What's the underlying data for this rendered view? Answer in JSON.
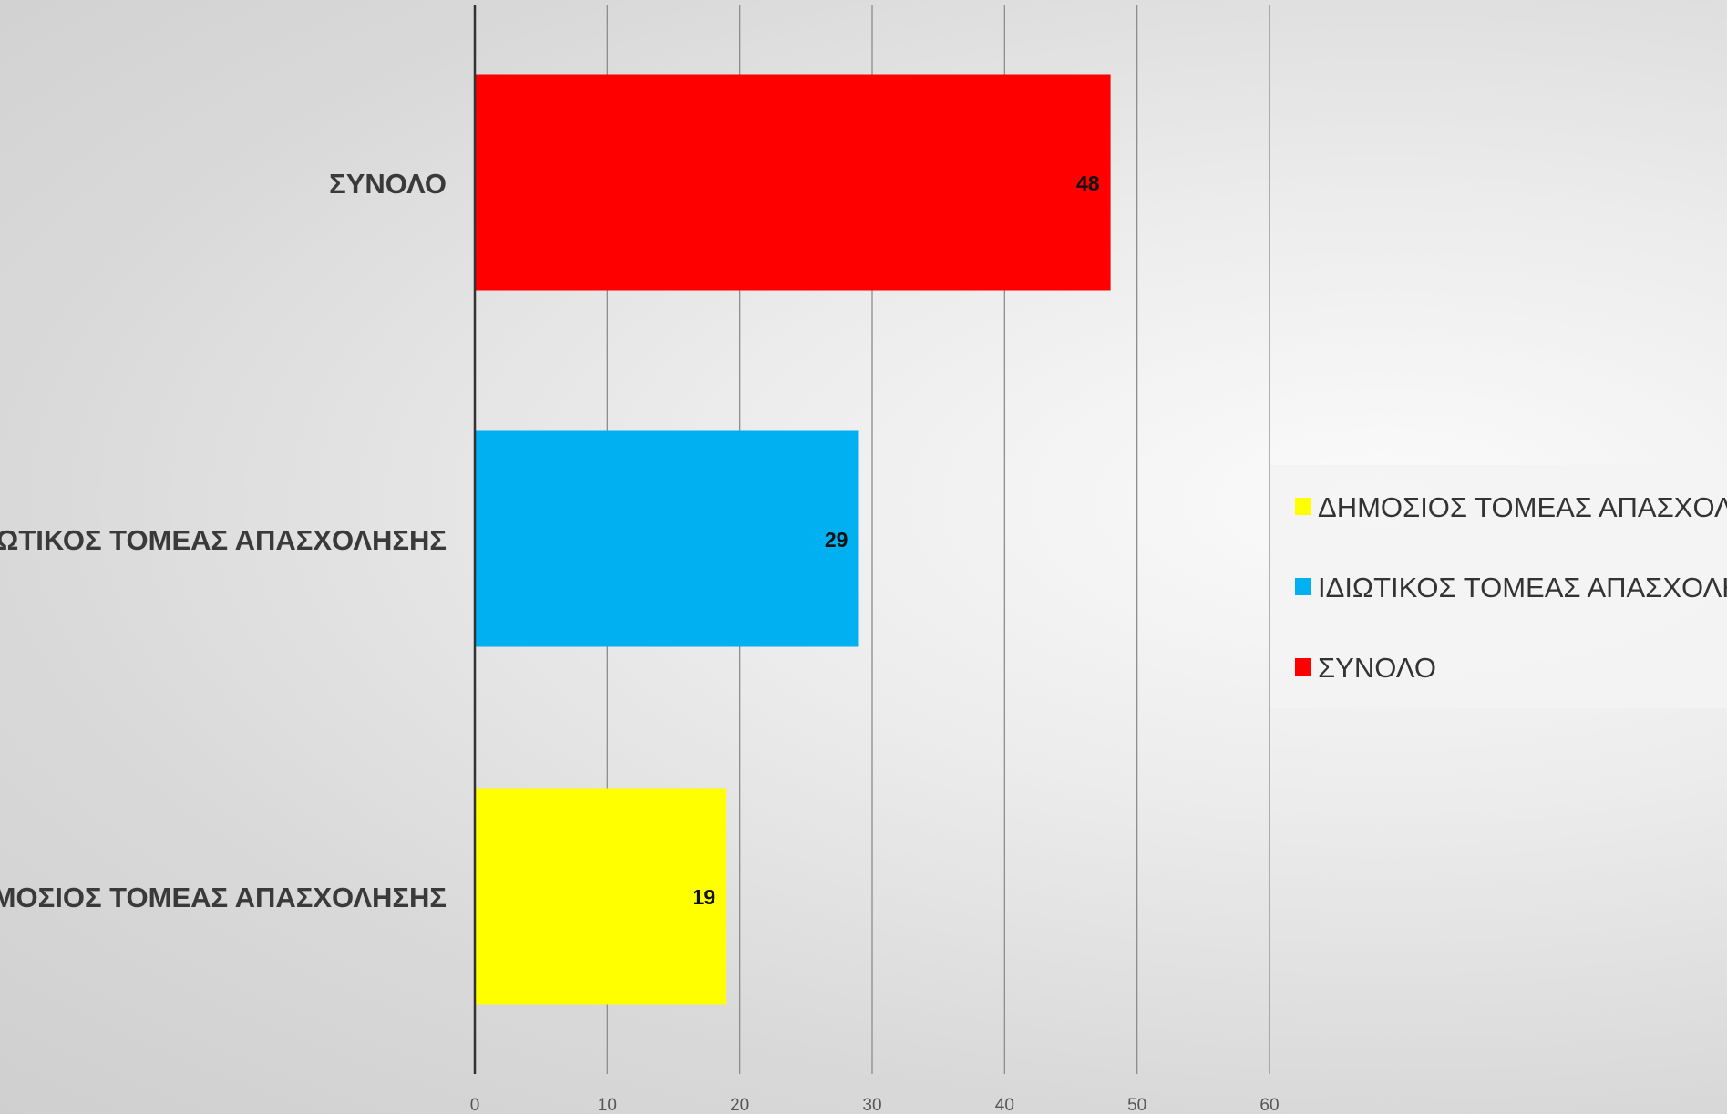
{
  "chart_data": {
    "type": "bar",
    "orientation": "horizontal",
    "categories": [
      "ΣΥΝΟΛΟ",
      "ΙΔΙΩΤΙΚΟΣ ΤΟΜΕΑΣ ΑΠΑΣΧΟΛΗΣΗΣ",
      "ΔΗΜΟΣΙΟΣ ΤΟΜΕΑΣ ΑΠΑΣΧΟΛΗΣΗΣ"
    ],
    "values": [
      48,
      29,
      19
    ],
    "colors": [
      "#ff0000",
      "#00b0f0",
      "#ffff00"
    ],
    "data_labels": [
      "48",
      "29",
      "19"
    ],
    "xlim": [
      0,
      60
    ],
    "xticks": [
      "0",
      "10",
      "20",
      "30",
      "40",
      "50",
      "60"
    ],
    "grid": true,
    "legend_position": "right",
    "legend": [
      {
        "label": "ΔΗΜΟΣΙΟΣ ΤΟΜΕΑΣ ΑΠΑΣΧΟΛΗΣΗΣ",
        "color": "#ffff00"
      },
      {
        "label": "ΙΔΙΩΤΙΚΟΣ ΤΟΜΕΑΣ ΑΠΑΣΧΟΛΗΣΗΣ",
        "color": "#00b0f0"
      },
      {
        "label": "ΣΥΝΟΛΟ",
        "color": "#ff0000"
      }
    ],
    "title": "",
    "xlabel": "",
    "ylabel": ""
  }
}
